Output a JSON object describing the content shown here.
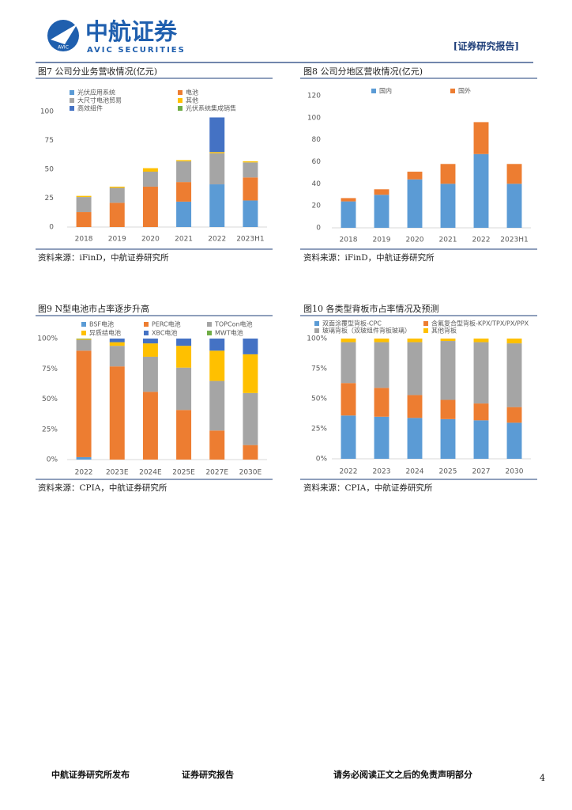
{
  "header": {
    "brand": "中航证券",
    "brand_en": "AVIC SECURITIES",
    "logo_text": "AVIC",
    "report_tag": "[证券研究报告]"
  },
  "chart_data": [
    {
      "type": "stacked_bar",
      "title": "图7 公司分业务营收情况(亿元)",
      "source": "资料来源：iFinD，中航证券研究所",
      "categories": [
        "2018",
        "2019",
        "2020",
        "2021",
        "2022",
        "2023H1"
      ],
      "series": [
        {
          "name": "光伏应用系统",
          "color": "#5b9bd5",
          "values": [
            0,
            0,
            0,
            22,
            37,
            23
          ]
        },
        {
          "name": "电池",
          "color": "#ed7d31",
          "values": [
            13,
            21,
            35,
            17,
            0,
            20
          ]
        },
        {
          "name": "大尺寸电池贸易",
          "color": "#a5a5a5",
          "values": [
            13,
            13,
            13,
            18,
            27,
            13
          ]
        },
        {
          "name": "其他",
          "color": "#ffc000",
          "values": [
            1,
            1,
            3,
            1,
            1,
            1
          ]
        },
        {
          "name": "高效组件",
          "color": "#4472c4",
          "values": [
            0,
            0,
            0,
            0,
            30,
            0
          ]
        },
        {
          "name": "光伏系统集成销售",
          "color": "#70ad47",
          "values": [
            0,
            0,
            0,
            0,
            0,
            0
          ]
        }
      ],
      "ylim": [
        0,
        120
      ],
      "yticks": [
        0,
        25,
        50,
        75,
        100
      ],
      "grid": false
    },
    {
      "type": "stacked_bar",
      "title": "图8 公司分地区营收情况(亿元)",
      "source": "资料来源：iFinD，中航证券研究所",
      "categories": [
        "2018",
        "2019",
        "2020",
        "2021",
        "2022",
        "2023H1"
      ],
      "series": [
        {
          "name": "国内",
          "color": "#5b9bd5",
          "values": [
            24,
            30,
            44,
            40,
            67,
            40
          ]
        },
        {
          "name": "国外",
          "color": "#ed7d31",
          "values": [
            3,
            5,
            7,
            18,
            29,
            18
          ]
        }
      ],
      "ylim": [
        0,
        120
      ],
      "yticks": [
        0,
        20,
        40,
        60,
        80,
        100,
        120
      ],
      "grid": false
    },
    {
      "type": "stacked_bar",
      "title": "图9 N型电池市占率逐步升高",
      "source": "资料来源：CPIA，中航证券研究所",
      "categories": [
        "2022",
        "2023E",
        "2024E",
        "2025E",
        "2027E",
        "2030E"
      ],
      "series": [
        {
          "name": "BSF电池",
          "color": "#5b9bd5",
          "values": [
            2,
            0,
            0,
            0,
            0,
            0
          ]
        },
        {
          "name": "PERC电池",
          "color": "#ed7d31",
          "values": [
            88,
            77,
            56,
            41,
            24,
            12
          ]
        },
        {
          "name": "TOPCon电池",
          "color": "#a5a5a5",
          "values": [
            9,
            17,
            29,
            35,
            41,
            43
          ]
        },
        {
          "name": "异质结电池",
          "color": "#ffc000",
          "values": [
            0.6,
            3,
            11,
            18,
            25,
            32
          ]
        },
        {
          "name": "XBC电池",
          "color": "#4472c4",
          "values": [
            0,
            3,
            4,
            6,
            10,
            13
          ]
        },
        {
          "name": "MWT电池",
          "color": "#70ad47",
          "values": [
            0.4,
            0,
            0,
            0,
            0,
            0
          ]
        }
      ],
      "ylim": [
        0,
        100
      ],
      "yticks": [
        {
          "value": 0,
          "label": "0%"
        },
        {
          "value": 25,
          "label": "25%"
        },
        {
          "value": 50,
          "label": "50%"
        },
        {
          "value": 75,
          "label": "75%"
        },
        {
          "value": 100,
          "label": "100%"
        }
      ],
      "grid": false
    },
    {
      "type": "stacked_bar",
      "title": "图10 各类型背板市占率情况及预测",
      "source": "资料来源：CPIA，中航证券研究所",
      "categories": [
        "2022",
        "2023",
        "2024",
        "2025",
        "2027",
        "2030"
      ],
      "series": [
        {
          "name": "双面涂覆型背板-CPC",
          "color": "#5b9bd5",
          "values": [
            36,
            35,
            34,
            33,
            32,
            30
          ]
        },
        {
          "name": "含氟复合型背板-KPX/TPX/PX/PPX",
          "color": "#ed7d31",
          "values": [
            27,
            24,
            19,
            16,
            14,
            13
          ]
        },
        {
          "name": "玻璃背板（双玻组件背板玻璃）",
          "color": "#a5a5a5",
          "values": [
            34,
            38,
            44,
            49,
            51,
            53
          ]
        },
        {
          "name": "其他背板",
          "color": "#ffc000",
          "values": [
            3,
            3,
            3,
            2,
            3,
            4
          ]
        }
      ],
      "ylim": [
        0,
        100
      ],
      "yticks": [
        {
          "value": 0,
          "label": "0%"
        },
        {
          "value": 25,
          "label": "25%"
        },
        {
          "value": 50,
          "label": "50%"
        },
        {
          "value": 75,
          "label": "75%"
        },
        {
          "value": 100,
          "label": "100%"
        }
      ],
      "grid": false
    }
  ],
  "footer": {
    "publisher": "中航证券研究所发布",
    "doc_type": "证券研究报告",
    "disclaimer": "请务必阅读正文之后的免责声明部分",
    "page": "4"
  }
}
